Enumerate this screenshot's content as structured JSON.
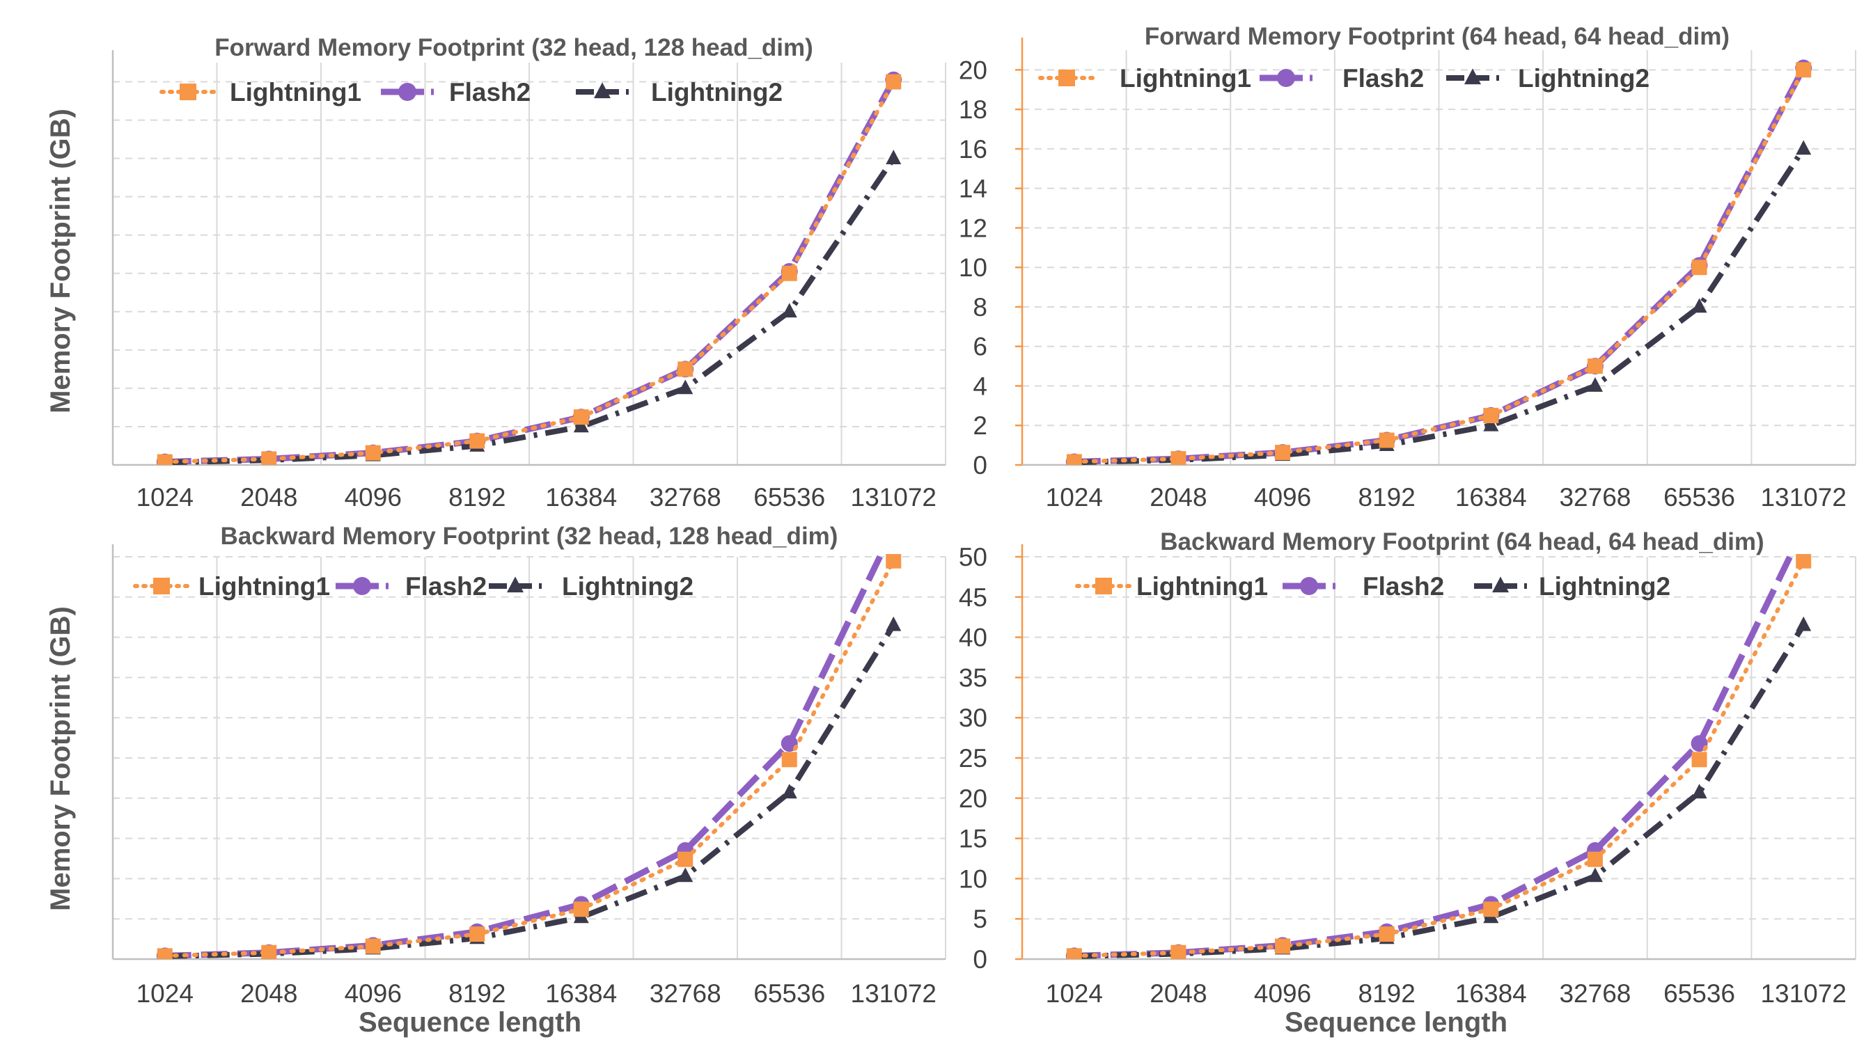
{
  "figure": {
    "ylabel_top": "Memory Footprint  (GB)",
    "ylabel_bottom": "Memory Footprint  (GB)",
    "xlabel_left": "Sequence length",
    "xlabel_right": "Sequence length"
  },
  "colors": {
    "Lightning1": "#F79646",
    "Flash2": "#8E5FC3",
    "Lightning2": "#3A3A4C",
    "grid": "#D9D9D9",
    "text": "#404040"
  },
  "chart_data": [
    {
      "type": "line",
      "title": "Forward Memory Footprint (32 head, 128 head_dim)",
      "xlabel": "",
      "ylabel": "Memory Footprint  (GB)",
      "categories": [
        "1024",
        "2048",
        "4096",
        "8192",
        "16384",
        "32768",
        "65536",
        "131072"
      ],
      "ylim": [
        0,
        21
      ],
      "grid_step": 2,
      "show_y_ticks": false,
      "legend_position": "top-left",
      "series": [
        {
          "name": "Lightning1",
          "values": [
            0.16,
            0.31,
            0.63,
            1.25,
            2.5,
            5.0,
            10.0,
            20.0
          ]
        },
        {
          "name": "Flash2",
          "values": [
            0.16,
            0.31,
            0.63,
            1.25,
            2.5,
            5.0,
            10.1,
            20.1
          ]
        },
        {
          "name": "Lightning2",
          "values": [
            0.13,
            0.25,
            0.5,
            1.0,
            2.0,
            4.0,
            8.0,
            16.0
          ]
        }
      ]
    },
    {
      "type": "line",
      "title": "Forward Memory Footprint (64 head, 64 head_dim)",
      "xlabel": "",
      "ylabel": "",
      "categories": [
        "1024",
        "2048",
        "4096",
        "8192",
        "16384",
        "32768",
        "65536",
        "131072"
      ],
      "ylim": [
        0,
        21
      ],
      "grid_step": 2,
      "show_y_ticks": true,
      "y_ticks": [
        "0",
        "2",
        "4",
        "6",
        "8",
        "10",
        "12",
        "14",
        "16",
        "18",
        "20"
      ],
      "legend_position": "top",
      "series": [
        {
          "name": "Lightning1",
          "values": [
            0.16,
            0.31,
            0.63,
            1.25,
            2.5,
            5.0,
            10.0,
            20.0
          ]
        },
        {
          "name": "Flash2",
          "values": [
            0.16,
            0.31,
            0.63,
            1.25,
            2.5,
            5.0,
            10.1,
            20.1
          ]
        },
        {
          "name": "Lightning2",
          "values": [
            0.13,
            0.25,
            0.5,
            1.0,
            2.0,
            4.0,
            8.0,
            16.0
          ]
        }
      ]
    },
    {
      "type": "line",
      "title": "Backward Memory Footprint (32 head, 128 head_dim)",
      "xlabel": "Sequence length",
      "ylabel": "Memory Footprint  (GB)",
      "categories": [
        "1024",
        "2048",
        "4096",
        "8192",
        "16384",
        "32768",
        "65536",
        "131072"
      ],
      "ylim": [
        0,
        50
      ],
      "grid_step": 5,
      "show_y_ticks": false,
      "legend_position": "top-left",
      "series": [
        {
          "name": "Lightning1",
          "values": [
            0.4,
            0.8,
            1.6,
            3.1,
            6.2,
            12.4,
            24.8,
            49.5
          ]
        },
        {
          "name": "Flash2",
          "values": [
            0.4,
            0.8,
            1.7,
            3.4,
            6.8,
            13.5,
            26.8,
            53.5
          ]
        },
        {
          "name": "Lightning2",
          "values": [
            0.35,
            0.65,
            1.3,
            2.6,
            5.2,
            10.3,
            20.7,
            41.5
          ]
        }
      ]
    },
    {
      "type": "line",
      "title": "Backward Memory Footprint (64 head, 64 head_dim)",
      "xlabel": "Sequence length",
      "ylabel": "",
      "categories": [
        "1024",
        "2048",
        "4096",
        "8192",
        "16384",
        "32768",
        "65536",
        "131072"
      ],
      "ylim": [
        0,
        50
      ],
      "grid_step": 5,
      "show_y_ticks": true,
      "y_ticks": [
        "0",
        "5",
        "10",
        "15",
        "20",
        "25",
        "30",
        "35",
        "40",
        "45",
        "50"
      ],
      "legend_position": "top",
      "series": [
        {
          "name": "Lightning1",
          "values": [
            0.4,
            0.8,
            1.6,
            3.1,
            6.2,
            12.4,
            24.8,
            49.5
          ]
        },
        {
          "name": "Flash2",
          "values": [
            0.4,
            0.8,
            1.7,
            3.4,
            6.8,
            13.5,
            26.8,
            53.5
          ]
        },
        {
          "name": "Lightning2",
          "values": [
            0.35,
            0.65,
            1.3,
            2.6,
            5.2,
            10.3,
            20.7,
            41.5
          ]
        }
      ]
    }
  ]
}
